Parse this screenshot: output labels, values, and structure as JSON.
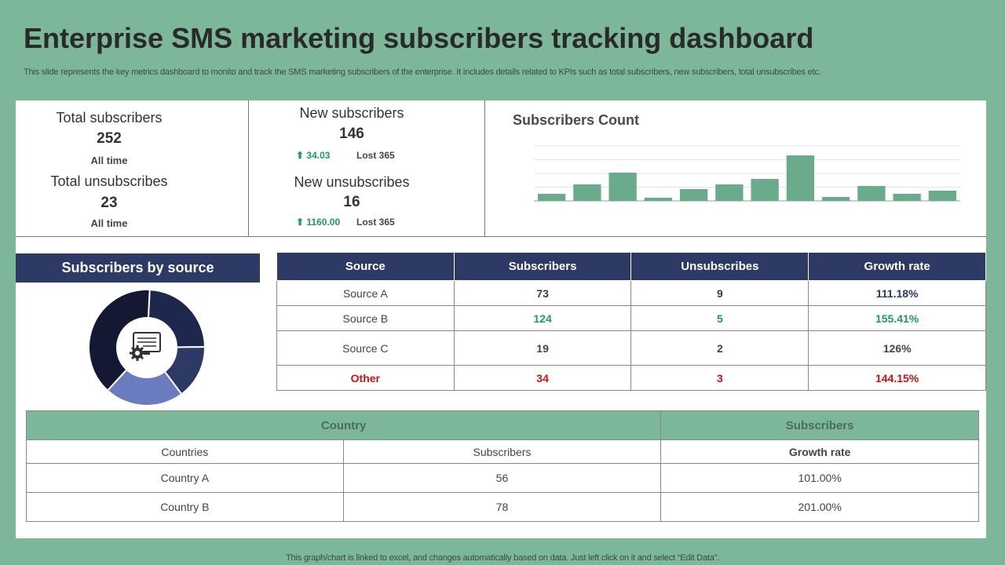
{
  "title": "Enterprise SMS marketing subscribers tracking dashboard",
  "subtitle": "This slide represents the key metrics dashboard to monito and track the SMS  marketing subscribers of the enterprise. It includes details related to KPIs such as total subscribers, new subscribers, total unsubscribes etc.",
  "kpis": {
    "total_subscribers": {
      "label": "Total subscribers",
      "value": "252",
      "sub": "All time"
    },
    "total_unsubscribes": {
      "label": "Total unsubscribes",
      "value": "23",
      "sub": "All time"
    },
    "new_subscribers": {
      "label": "New subscribers",
      "value": "146",
      "change": "34.03",
      "lost": "Lost 365"
    },
    "new_unsubscribes": {
      "label": "New unsubscribes",
      "value": "16",
      "change": "1160.00",
      "lost": "Lost 365"
    }
  },
  "chart_title": "Subscribers Count",
  "chart_data": {
    "type": "bar",
    "values": [
      9,
      21,
      36,
      4,
      15,
      21,
      28,
      58,
      5,
      19,
      9,
      13
    ],
    "ylim": [
      0,
      70
    ],
    "grid": true,
    "color": "#6aab8c"
  },
  "source_section": {
    "header": "Subscribers by source",
    "donut": [
      {
        "value": 24,
        "color": "#1e274d"
      },
      {
        "value": 15,
        "color": "#2d3a66"
      },
      {
        "value": 22,
        "color": "#6a7bbf"
      },
      {
        "value": 39,
        "color": "#141833"
      }
    ],
    "icon": "monitor-gear-icon"
  },
  "source_table": {
    "headers": [
      "Source",
      "Subscribers",
      "Unsubscribes",
      "Growth rate"
    ],
    "rows": [
      [
        "Source A",
        "73",
        "9",
        "111.18%"
      ],
      [
        "Source B",
        "124",
        "5",
        "155.41%"
      ],
      [
        "Source C",
        "19",
        "2",
        "126%"
      ],
      [
        "Other",
        "34",
        "3",
        "144.15%"
      ]
    ]
  },
  "country_table": {
    "group_headers": [
      "Country",
      "Subscribers"
    ],
    "sub_headers": [
      "Countries",
      "Subscribers",
      "Growth rate"
    ],
    "rows": [
      [
        "Country A",
        "56",
        "101.00%"
      ],
      [
        "Country B",
        "78",
        "201.00%"
      ]
    ]
  },
  "footer": "This graph/chart is linked to excel,  and changes automatically based on data. Just left click on it and select “Edit Data”."
}
